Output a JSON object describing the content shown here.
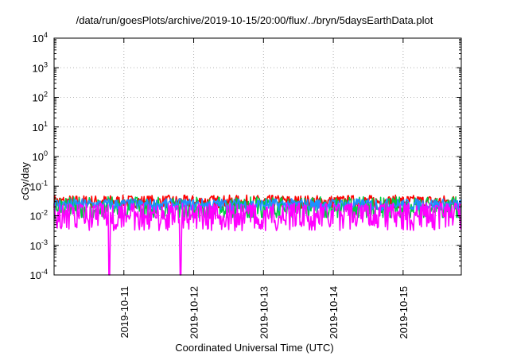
{
  "chart_data": {
    "type": "line",
    "title": "/data/run/goesPlots/archive/2019-10-15/20:00/flux/../bryn/5daysEarthData.plot",
    "xlabel": "Coordinated Universal Time (UTC)",
    "ylabel": "cGy/day",
    "x_range": [
      "2019-10-10T00:00",
      "2019-10-15T20:00"
    ],
    "ylim": [
      0.0001,
      10000
    ],
    "yscale": "log",
    "grid": true,
    "legend": "none",
    "x_ticks": [
      "2019-10-11",
      "2019-10-12",
      "2019-10-13",
      "2019-10-14",
      "2019-10-15"
    ],
    "y_ticks": [
      {
        "base": "10",
        "exp": "-4"
      },
      {
        "base": "10",
        "exp": "-3"
      },
      {
        "base": "10",
        "exp": "-2"
      },
      {
        "base": "10",
        "exp": "-1"
      },
      {
        "base": "10",
        "exp": "0"
      },
      {
        "base": "10",
        "exp": "1"
      },
      {
        "base": "10",
        "exp": "2"
      },
      {
        "base": "10",
        "exp": "3"
      },
      {
        "base": "10",
        "exp": "4"
      }
    ],
    "series": [
      {
        "color": "#ff0000",
        "level": 0.03,
        "spread": 0.22
      },
      {
        "color": "#00cc44",
        "level": 0.022,
        "spread": 0.3
      },
      {
        "color": "#1e90ff",
        "level": 0.024,
        "spread": 0.2
      },
      {
        "color": "#ff00ff",
        "level": 0.007,
        "spread": 0.35,
        "dropouts": [
          "2019-10-10T19:00",
          "2019-10-11T19:30"
        ]
      }
    ]
  }
}
